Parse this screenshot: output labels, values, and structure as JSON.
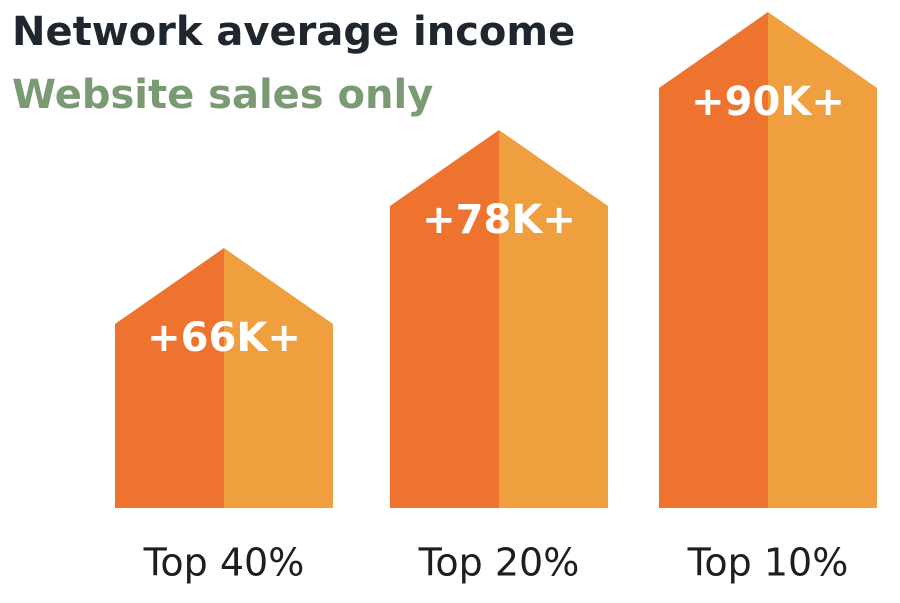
{
  "chart_data": {
    "type": "bar",
    "title": "Network average income",
    "subtitle": "Website sales only",
    "categories": [
      "Top 40%",
      "Top 20%",
      "Top 10%"
    ],
    "values": [
      66,
      78,
      90
    ],
    "value_labels": [
      "+66K+",
      "+78K+",
      "+90K+"
    ],
    "colors": [
      "#ed732f",
      "#f09f3e"
    ]
  }
}
